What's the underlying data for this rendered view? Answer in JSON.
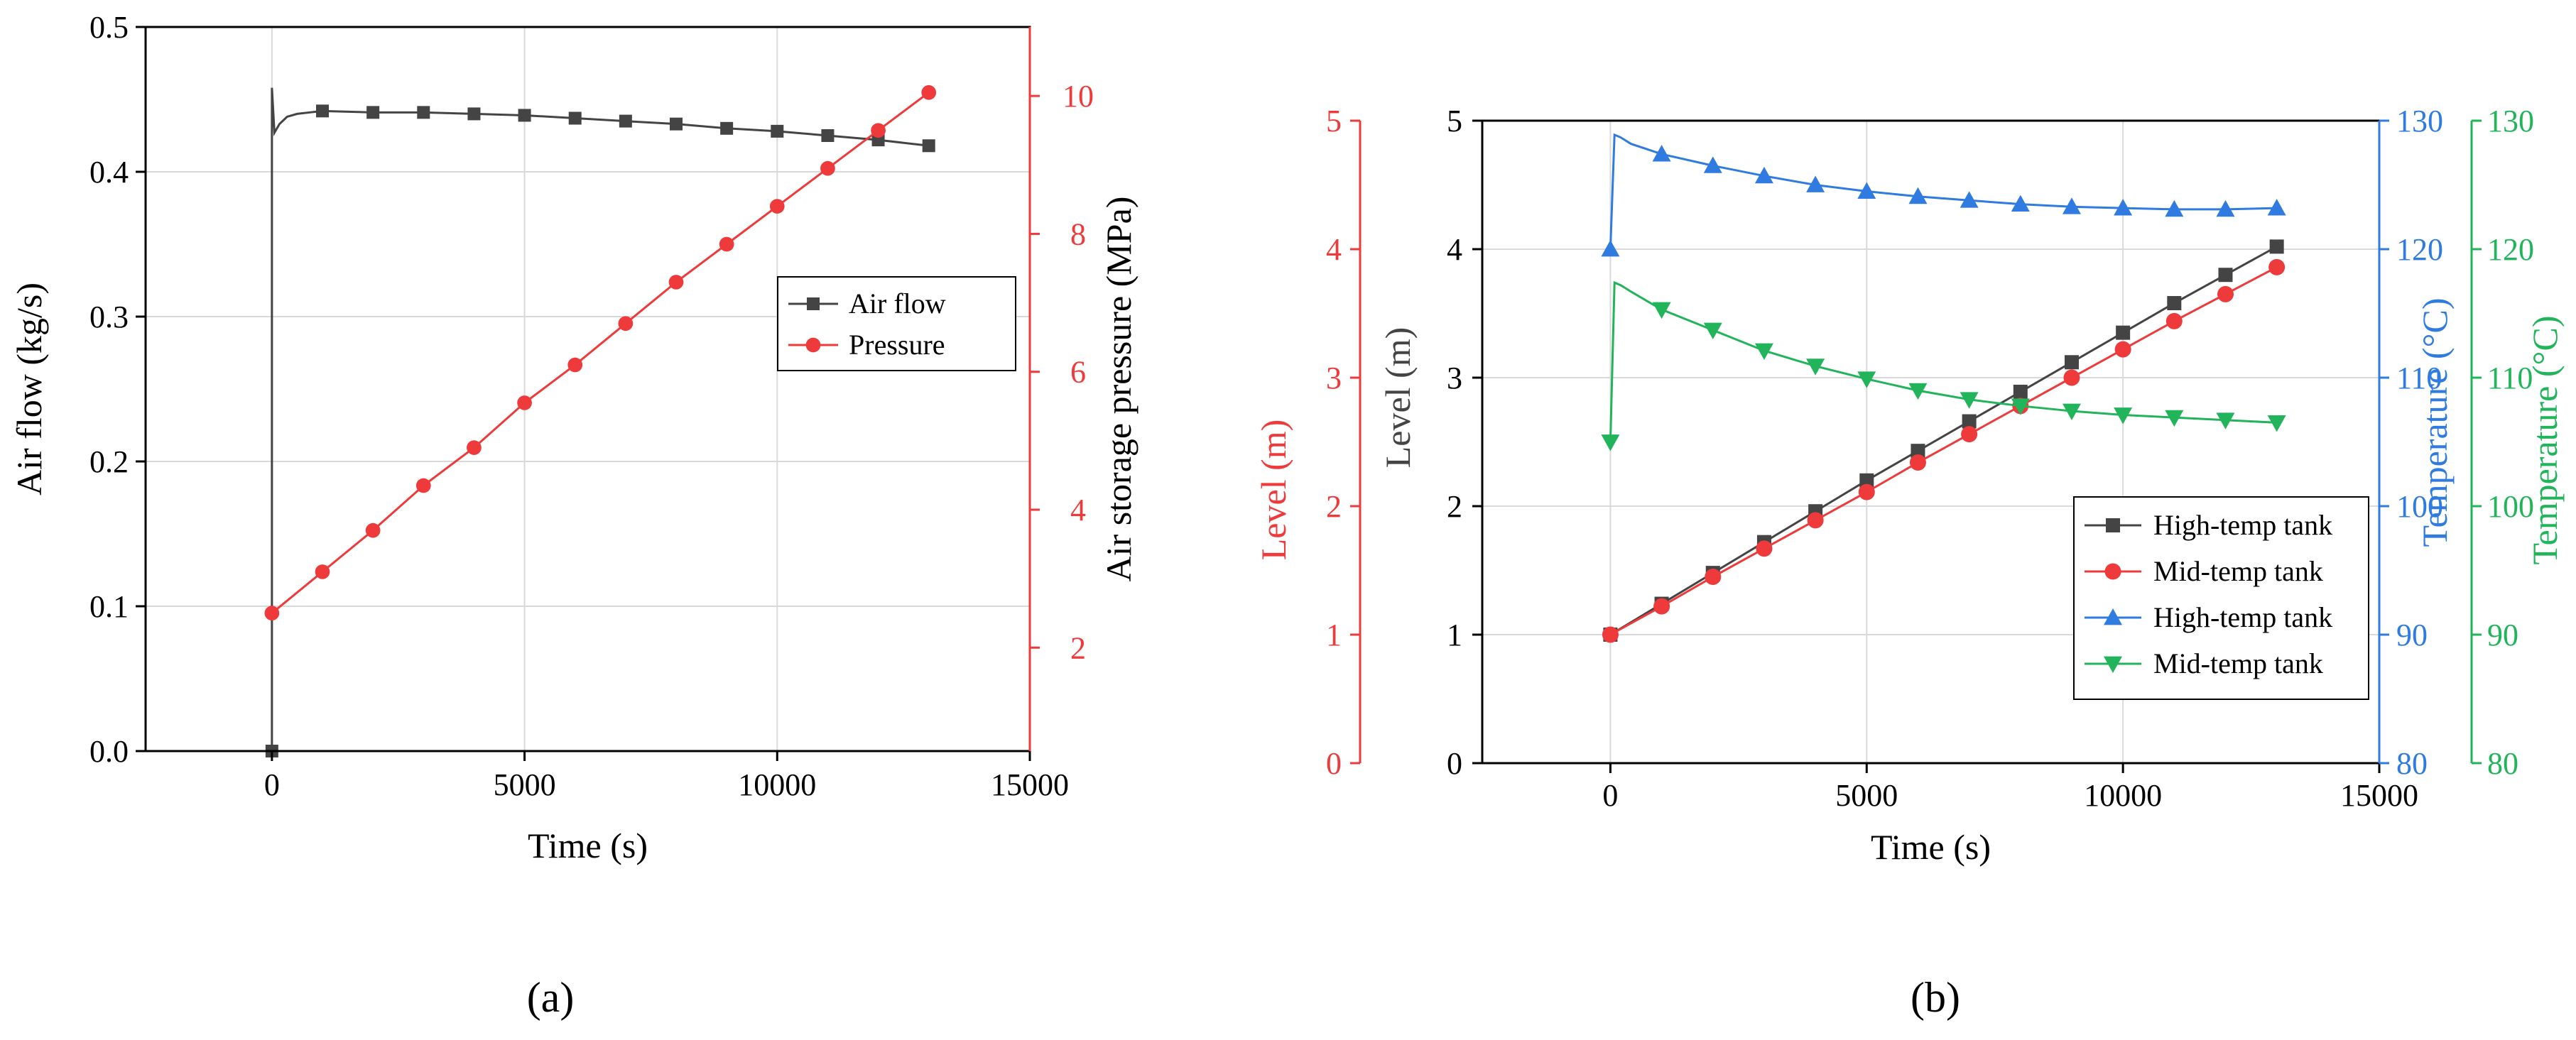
{
  "colors": {
    "black": "#000000",
    "gray_series": "#444444",
    "red": "#ee3a3a",
    "blue": "#2f7be0",
    "green": "#22b45a",
    "grid": "#d9d9d9"
  },
  "panel_labels": {
    "a": "(a)",
    "b": "(b)"
  },
  "chart_data": [
    {
      "type": "line",
      "panel": "a",
      "title": "",
      "xlabel": "Time (s)",
      "ylabel_left": "Air flow (kg/s)",
      "ylabel_right": "Air storage pressure (MPa)",
      "xlim": [
        -2500,
        15000
      ],
      "xticks": [
        0,
        5000,
        10000,
        15000
      ],
      "xtick_labels": [
        "0",
        "5000",
        "10000",
        "15000"
      ],
      "ylim_left": [
        0,
        0.5
      ],
      "yticks_left": [
        0.0,
        0.1,
        0.2,
        0.3,
        0.4,
        0.5
      ],
      "ytick_labels_left": [
        "0.0",
        "0.1",
        "0.2",
        "0.3",
        "0.4",
        "0.5"
      ],
      "ylim_right": [
        0.5,
        11.0
      ],
      "yticks_right": [
        2,
        4,
        6,
        8,
        10
      ],
      "ytick_labels_right": [
        "2",
        "4",
        "6",
        "8",
        "10"
      ],
      "grid": true,
      "legend_position": "center-right",
      "series": [
        {
          "name": "Air flow",
          "axis": "left",
          "color": "#444444",
          "marker": "square",
          "line_x": [
            0,
            0,
            50,
            150,
            300,
            500,
            1000,
            2000,
            3000,
            4000,
            5000,
            6000,
            7000,
            8000,
            9000,
            10000,
            11000,
            12000,
            13000
          ],
          "line_y": [
            0.0,
            0.458,
            0.427,
            0.433,
            0.438,
            0.44,
            0.442,
            0.441,
            0.441,
            0.44,
            0.439,
            0.437,
            0.435,
            0.433,
            0.43,
            0.428,
            0.425,
            0.422,
            0.418
          ],
          "marker_x": [
            0,
            1000,
            2000,
            3000,
            4000,
            5000,
            6000,
            7000,
            8000,
            9000,
            10000,
            11000,
            12000,
            13000
          ],
          "marker_y": [
            0.0,
            0.442,
            0.441,
            0.441,
            0.44,
            0.439,
            0.437,
            0.435,
            0.433,
            0.43,
            0.428,
            0.425,
            0.422,
            0.418
          ]
        },
        {
          "name": "Pressure",
          "axis": "right",
          "color": "#ee3a3a",
          "marker": "circle",
          "line_x": [
            0,
            1000,
            2000,
            3000,
            4000,
            5000,
            6000,
            7000,
            8000,
            9000,
            10000,
            11000,
            12000,
            13000
          ],
          "line_y": [
            2.5,
            3.1,
            3.7,
            4.35,
            4.9,
            5.55,
            6.1,
            6.7,
            7.3,
            7.85,
            8.4,
            8.95,
            9.5,
            10.05
          ],
          "marker_x": [
            0,
            1000,
            2000,
            3000,
            4000,
            5000,
            6000,
            7000,
            8000,
            9000,
            10000,
            11000,
            12000,
            13000
          ],
          "marker_y": [
            2.5,
            3.1,
            3.7,
            4.35,
            4.9,
            5.55,
            6.1,
            6.7,
            7.3,
            7.85,
            8.4,
            8.95,
            9.5,
            10.05
          ]
        }
      ]
    },
    {
      "type": "line",
      "panel": "b",
      "title": "",
      "xlabel": "Time (s)",
      "ylabel_left_outer": "Level (m)",
      "ylabel_left_inner": "Level (m)",
      "ylabel_right_inner": "Temperature (°C)",
      "ylabel_right_outer": "Temperature (°C)",
      "xlim": [
        -2500,
        15000
      ],
      "xticks": [
        0,
        5000,
        10000,
        15000
      ],
      "xtick_labels": [
        "0",
        "5000",
        "10000",
        "15000"
      ],
      "ylim_level": [
        0,
        5
      ],
      "yticks_level": [
        0,
        1,
        2,
        3,
        4,
        5
      ],
      "ytick_labels_level": [
        "0",
        "1",
        "2",
        "3",
        "4",
        "5"
      ],
      "ylim_temp": [
        80,
        130
      ],
      "yticks_temp": [
        80,
        90,
        100,
        110,
        120,
        130
      ],
      "ytick_labels_temp": [
        "80",
        "90",
        "100",
        "110",
        "120",
        "130"
      ],
      "grid": true,
      "legend_position": "bottom-right",
      "series": [
        {
          "name": "High-temp tank",
          "axis": "level",
          "color": "#444444",
          "marker": "square",
          "line_x": [
            0,
            1000,
            2000,
            3000,
            4000,
            5000,
            6000,
            7000,
            8000,
            9000,
            10000,
            11000,
            12000,
            13000
          ],
          "line_y": [
            1.0,
            1.24,
            1.48,
            1.72,
            1.96,
            2.2,
            2.43,
            2.66,
            2.89,
            3.12,
            3.35,
            3.58,
            3.8,
            4.02
          ],
          "marker_x": [
            0,
            1000,
            2000,
            3000,
            4000,
            5000,
            6000,
            7000,
            8000,
            9000,
            10000,
            11000,
            12000,
            13000
          ],
          "marker_y": [
            1.0,
            1.24,
            1.48,
            1.72,
            1.96,
            2.2,
            2.43,
            2.66,
            2.89,
            3.12,
            3.35,
            3.58,
            3.8,
            4.02
          ]
        },
        {
          "name": "Mid-temp tank",
          "axis": "level",
          "color": "#ee3a3a",
          "marker": "circle",
          "line_x": [
            0,
            1000,
            2000,
            3000,
            4000,
            5000,
            6000,
            7000,
            8000,
            9000,
            10000,
            11000,
            12000,
            13000
          ],
          "line_y": [
            1.0,
            1.22,
            1.45,
            1.67,
            1.89,
            2.11,
            2.34,
            2.56,
            2.78,
            3.0,
            3.22,
            3.44,
            3.65,
            3.86
          ],
          "marker_x": [
            0,
            1000,
            2000,
            3000,
            4000,
            5000,
            6000,
            7000,
            8000,
            9000,
            10000,
            11000,
            12000,
            13000
          ],
          "marker_y": [
            1.0,
            1.22,
            1.45,
            1.67,
            1.89,
            2.11,
            2.34,
            2.56,
            2.78,
            3.0,
            3.22,
            3.44,
            3.65,
            3.86
          ]
        },
        {
          "name": "High-temp tank",
          "axis": "temp",
          "color": "#2f7be0",
          "marker": "triangle-up",
          "line_x": [
            0,
            0,
            80,
            200,
            400,
            700,
            1000,
            2000,
            3000,
            4000,
            5000,
            6000,
            7000,
            8000,
            9000,
            10000,
            11000,
            12000,
            13000
          ],
          "line_y": [
            120.0,
            120.0,
            128.9,
            128.7,
            128.2,
            127.8,
            127.4,
            126.5,
            125.7,
            125.0,
            124.5,
            124.1,
            123.8,
            123.5,
            123.3,
            123.2,
            123.1,
            123.1,
            123.2
          ],
          "marker_x": [
            0,
            1000,
            2000,
            3000,
            4000,
            5000,
            6000,
            7000,
            8000,
            9000,
            10000,
            11000,
            12000,
            13000
          ],
          "marker_y": [
            120.0,
            127.4,
            126.5,
            125.7,
            125.0,
            124.5,
            124.1,
            123.8,
            123.5,
            123.3,
            123.2,
            123.1,
            123.1,
            123.2
          ]
        },
        {
          "name": "Mid-temp tank",
          "axis": "temp",
          "color": "#22b45a",
          "marker": "triangle-down",
          "line_x": [
            0,
            0,
            80,
            200,
            400,
            700,
            1000,
            2000,
            3000,
            4000,
            5000,
            6000,
            7000,
            8000,
            9000,
            10000,
            11000,
            12000,
            13000
          ],
          "line_y": [
            105.0,
            105.0,
            117.4,
            117.2,
            116.7,
            116.0,
            115.3,
            113.7,
            112.1,
            110.9,
            109.9,
            109.0,
            108.3,
            107.8,
            107.4,
            107.1,
            106.9,
            106.7,
            106.5
          ],
          "marker_x": [
            0,
            1000,
            2000,
            3000,
            4000,
            5000,
            6000,
            7000,
            8000,
            9000,
            10000,
            11000,
            12000,
            13000
          ],
          "marker_y": [
            105.0,
            115.3,
            113.7,
            112.1,
            110.9,
            109.9,
            109.0,
            108.3,
            107.8,
            107.4,
            107.1,
            106.9,
            106.7,
            106.5
          ]
        }
      ]
    }
  ]
}
